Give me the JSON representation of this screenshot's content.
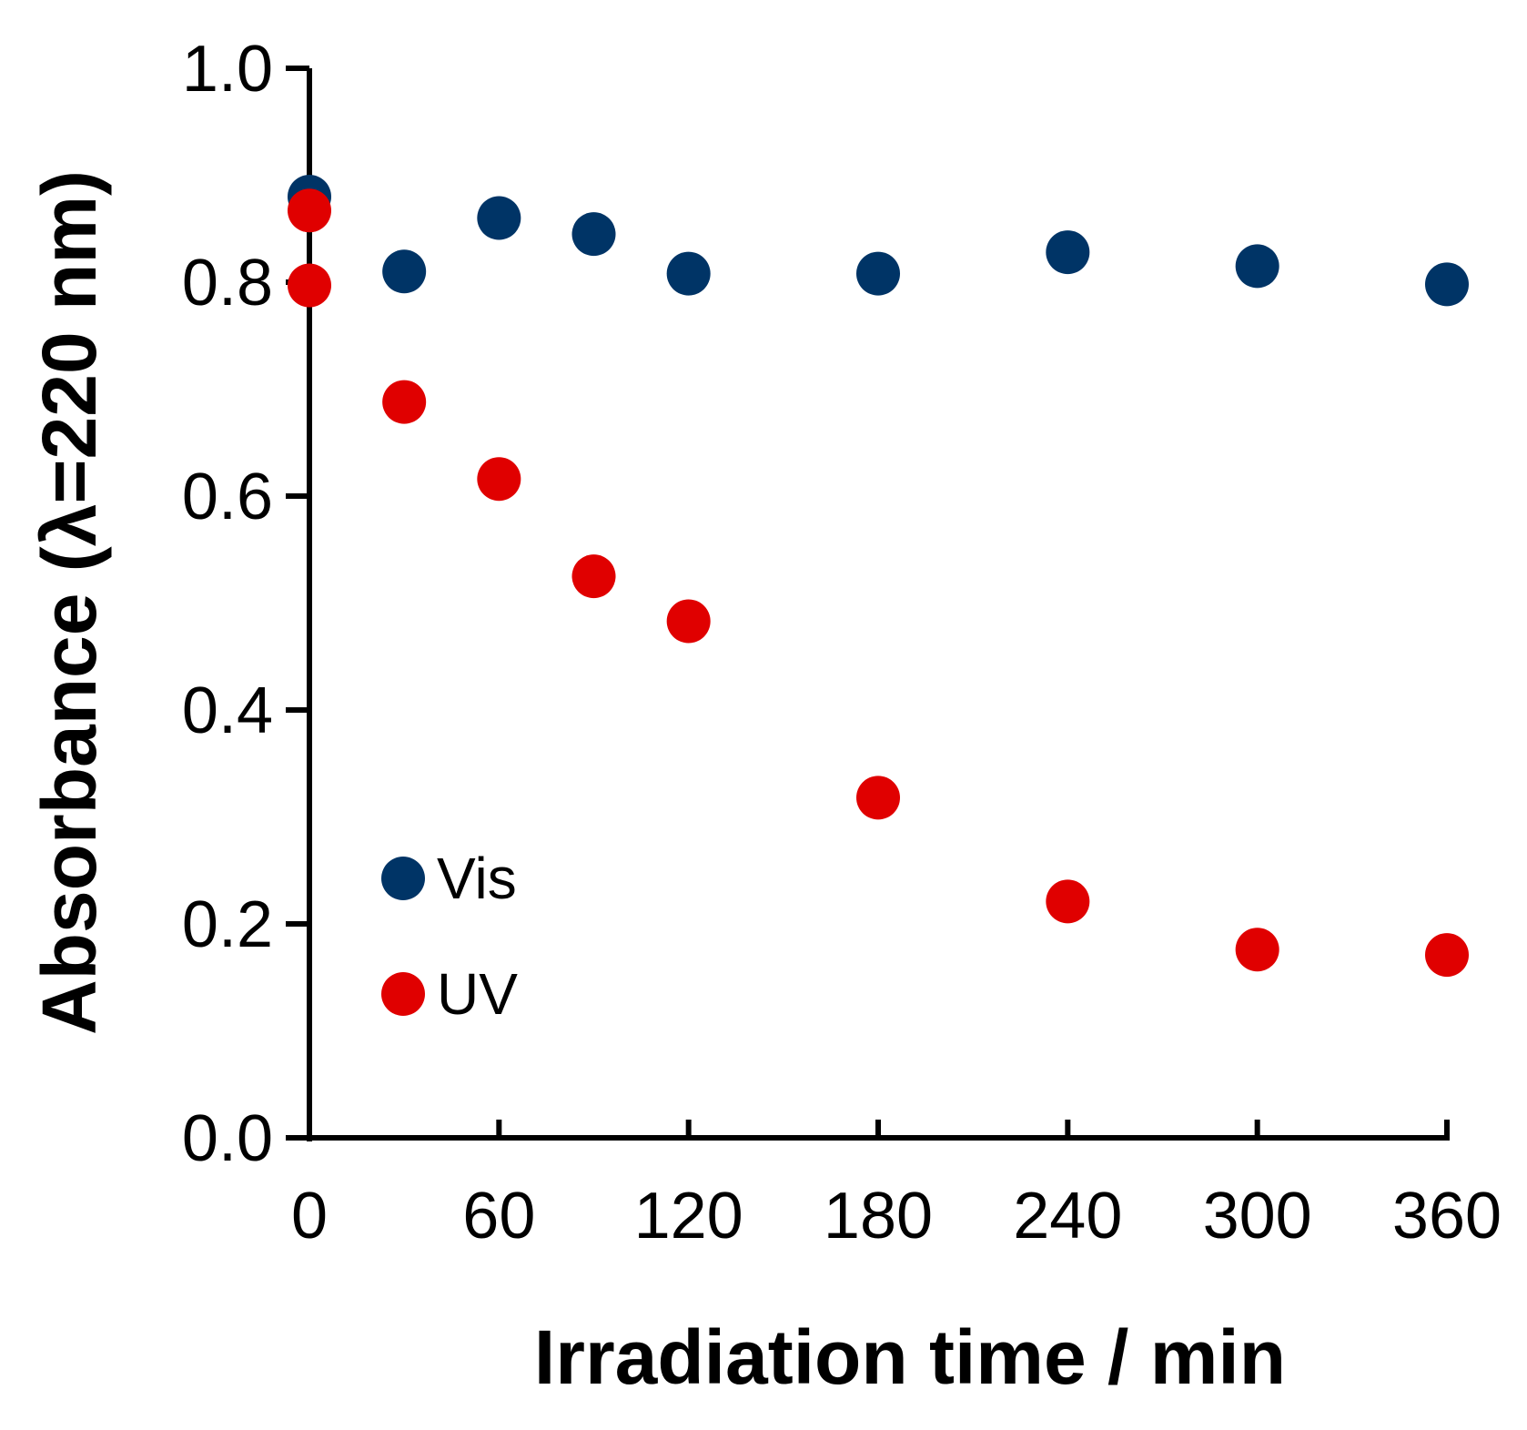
{
  "chart_data": {
    "type": "scatter",
    "title": "",
    "xlabel": "Irradiation time / min",
    "ylabel": "Absorbance  (λ=220 nm)",
    "xlim": [
      0,
      360
    ],
    "ylim": [
      0.0,
      1.0
    ],
    "xticks": [
      0,
      60,
      120,
      180,
      240,
      300,
      360
    ],
    "xtick_labels": [
      "0",
      "60",
      "120",
      "180",
      "240",
      "300",
      "360"
    ],
    "yticks": [
      0.0,
      0.2,
      0.4,
      0.6,
      0.8,
      1.0
    ],
    "ytick_labels": [
      "0.0",
      "0.2",
      "0.4",
      "0.6",
      "0.8",
      "1.0"
    ],
    "grid": false,
    "legend_position": "lower-left",
    "series": [
      {
        "name": "Vis",
        "color": "#003466",
        "x": [
          0,
          30,
          60,
          90,
          120,
          180,
          240,
          300,
          360
        ],
        "y": [
          0.88,
          0.81,
          0.86,
          0.845,
          0.808,
          0.808,
          0.828,
          0.815,
          0.798
        ]
      },
      {
        "name": "UV",
        "color": "#e00000",
        "x": [
          0,
          0,
          30,
          60,
          90,
          120,
          180,
          240,
          300,
          360
        ],
        "y": [
          0.867,
          0.797,
          0.688,
          0.616,
          0.525,
          0.483,
          0.318,
          0.221,
          0.176,
          0.171
        ]
      }
    ]
  }
}
